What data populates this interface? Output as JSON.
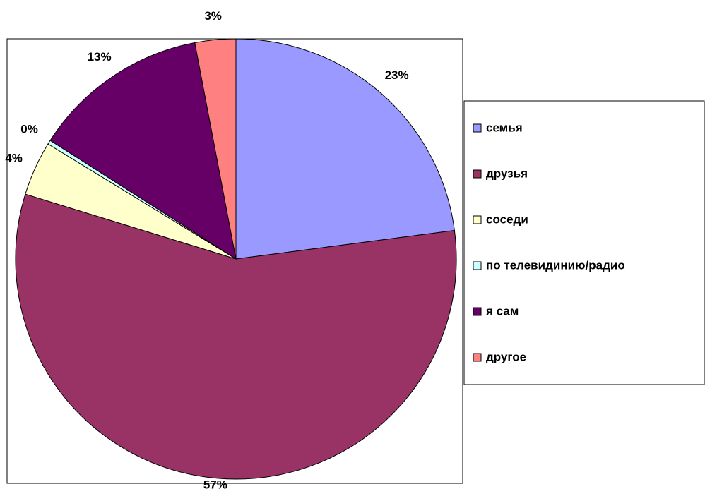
{
  "chart_data": {
    "type": "pie",
    "categories": [
      "семья",
      "друзья",
      "соседи",
      "по телевидинию/радио",
      "я сам",
      "другое"
    ],
    "values": [
      23,
      57,
      4,
      0.3,
      13,
      3
    ],
    "value_labels": [
      "23%",
      "57%",
      "4%",
      "0%",
      "13%",
      "3%"
    ],
    "colors": [
      "#9999ff",
      "#993366",
      "#ffffcc",
      "#ccffff",
      "#660066",
      "#ff8080"
    ],
    "legend": "right"
  }
}
